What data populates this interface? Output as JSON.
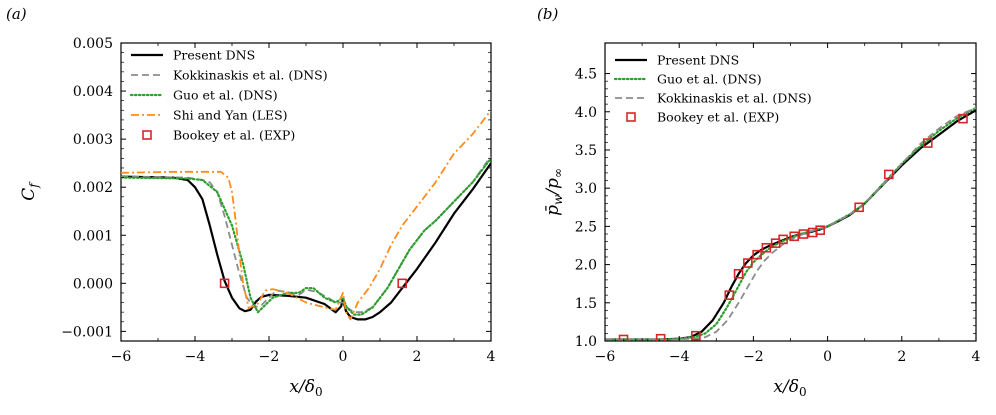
{
  "colors": {
    "dns": "#000000",
    "kokkinaskis": "#8c8c8c",
    "guo": "#2ca02c",
    "shi": "#ff8c1a",
    "bookey": "#d62728"
  },
  "chart_data": [
    {
      "type": "line",
      "panel_label": "(a)",
      "xlabel": "x/δ₀",
      "ylabel": "C_f",
      "xlim": [
        -6,
        4
      ],
      "ylim": [
        -0.0012,
        0.005
      ],
      "xticks": [
        -6,
        -4,
        -2,
        0,
        2,
        4
      ],
      "xtick_labels": [
        "−6",
        "−4",
        "−2",
        "0",
        "2",
        "4"
      ],
      "yticks": [
        -0.001,
        0.0,
        0.001,
        0.002,
        0.003,
        0.004,
        0.005
      ],
      "ytick_labels": [
        "−0.001",
        "0.000",
        "0.001",
        "0.002",
        "0.003",
        "0.004",
        "0.005"
      ],
      "legend_position": "top-left",
      "series": [
        {
          "name": "Present DNS",
          "style": "solid",
          "color_key": "dns",
          "x": [
            -6,
            -4.6,
            -4.2,
            -4.0,
            -3.8,
            -3.6,
            -3.4,
            -3.2,
            -3.0,
            -2.8,
            -2.65,
            -2.5,
            -2.35,
            -2.2,
            -2.0,
            -1.5,
            -1.0,
            -0.5,
            -0.2,
            -0.05,
            0.0,
            0.08,
            0.2,
            0.4,
            0.6,
            0.8,
            1.0,
            1.3,
            1.6,
            2.0,
            2.5,
            3.0,
            3.5,
            4.0
          ],
          "y": [
            0.00222,
            0.0022,
            0.00215,
            0.002,
            0.00175,
            0.0012,
            0.0006,
            5e-05,
            -0.0003,
            -0.00052,
            -0.00058,
            -0.00055,
            -0.00038,
            -0.00028,
            -0.00024,
            -0.00026,
            -0.0003,
            -0.00043,
            -0.0006,
            -0.00048,
            -0.00033,
            -0.00058,
            -0.0007,
            -0.00075,
            -0.00075,
            -0.0007,
            -0.0006,
            -0.0004,
            -0.0001,
            0.0003,
            0.00085,
            0.00145,
            0.00195,
            0.0025
          ]
        },
        {
          "name": "Kokkinaskis et al. (DNS)",
          "style": "dashed",
          "color_key": "kokkinaskis",
          "x": [
            -6,
            -4.2,
            -3.8,
            -3.6,
            -3.4,
            -3.2,
            -3.0,
            -2.8,
            -2.6,
            -2.4,
            -2.2,
            -2.0,
            -1.8,
            -1.5,
            -1.2,
            -1.0,
            -0.7,
            -0.4,
            -0.2,
            0.0,
            0.1,
            0.3,
            0.5,
            0.8,
            1.2,
            1.5,
            1.8,
            2.2,
            2.5,
            3.0,
            3.5,
            4.0
          ],
          "y": [
            0.00222,
            0.0022,
            0.00215,
            0.0021,
            0.0019,
            0.0014,
            0.0008,
            0.0002,
            -0.0003,
            -0.0005,
            -0.00045,
            -0.0003,
            -0.00015,
            -0.00018,
            -0.00025,
            -0.00013,
            -0.00018,
            -0.0003,
            -0.0004,
            -0.0004,
            -0.0005,
            -0.0006,
            -0.0006,
            -0.0005,
            -0.0001,
            0.0003,
            0.0007,
            0.0011,
            0.0013,
            0.0017,
            0.0021,
            0.00265
          ]
        },
        {
          "name": "Guo et al. (DNS)",
          "style": "dotted",
          "color_key": "guo",
          "x": [
            -6,
            -4.2,
            -3.8,
            -3.4,
            -3.0,
            -2.7,
            -2.5,
            -2.3,
            -2.1,
            -1.9,
            -1.5,
            -1.2,
            -1.0,
            -0.8,
            -0.5,
            -0.2,
            0.0,
            0.1,
            0.3,
            0.5,
            0.8,
            1.2,
            1.5,
            1.8,
            2.2,
            2.5,
            3.0,
            3.5,
            4.0
          ],
          "y": [
            0.0022,
            0.00218,
            0.00215,
            0.0019,
            0.0012,
            0.0004,
            -0.0003,
            -0.0006,
            -0.00045,
            -0.0003,
            -0.0002,
            -0.0002,
            -0.0001,
            -0.0001,
            -0.0003,
            -0.0004,
            -0.0003,
            -0.0005,
            -0.00065,
            -0.00065,
            -0.0005,
            -0.0001,
            0.0003,
            0.0007,
            0.0011,
            0.0013,
            0.0017,
            0.0021,
            0.0026
          ]
        },
        {
          "name": "Shi and Yan (LES)",
          "style": "dashdot",
          "color_key": "shi",
          "x": [
            -6,
            -4.5,
            -3.3,
            -3.1,
            -3.0,
            -2.9,
            -2.8,
            -2.7,
            -2.55,
            -2.3,
            -2.1,
            -1.9,
            -1.5,
            -1.0,
            -0.5,
            -0.2,
            0.0,
            0.08,
            0.2,
            0.4,
            0.7,
            1.0,
            1.3,
            1.6,
            2.0,
            2.5,
            3.0,
            3.5,
            4.0
          ],
          "y": [
            0.0023,
            0.00232,
            0.00232,
            0.0022,
            0.0019,
            0.0013,
            0.0006,
            0.0,
            -0.00052,
            -0.00042,
            -0.00015,
            -0.00012,
            -0.0002,
            -0.0004,
            -0.0005,
            -0.00055,
            -0.0002,
            -0.0006,
            -0.00075,
            -0.0004,
            -0.0001,
            0.0003,
            0.0008,
            0.0012,
            0.0016,
            0.0021,
            0.0027,
            0.0031,
            0.0036
          ]
        },
        {
          "name": "Bookey et al. (EXP)",
          "style": "marker",
          "color_key": "bookey",
          "x": [
            -3.2,
            1.6
          ],
          "y": [
            0.0,
            0.0
          ]
        }
      ]
    },
    {
      "type": "line",
      "panel_label": "(b)",
      "xlabel": "x/δ₀",
      "ylabel": "p̄_w/p_∞",
      "xlim": [
        -6,
        4
      ],
      "ylim": [
        1.0,
        4.9
      ],
      "xticks": [
        -6,
        -4,
        -2,
        0,
        2,
        4
      ],
      "xtick_labels": [
        "−6",
        "−4",
        "−2",
        "0",
        "2",
        "4"
      ],
      "yticks": [
        1.0,
        1.5,
        2.0,
        2.5,
        3.0,
        3.5,
        4.0,
        4.5
      ],
      "ytick_labels": [
        "1.0",
        "1.5",
        "2.0",
        "2.5",
        "3.0",
        "3.5",
        "4.0",
        "4.5"
      ],
      "legend_position": "top-left",
      "series": [
        {
          "name": "Present DNS",
          "style": "solid",
          "color_key": "dns",
          "x": [
            -6,
            -4.5,
            -4.0,
            -3.7,
            -3.4,
            -3.1,
            -2.8,
            -2.6,
            -2.4,
            -2.2,
            -2.0,
            -1.8,
            -1.6,
            -1.4,
            -1.2,
            -1.0,
            -0.8,
            -0.5,
            -0.2,
            0.0,
            0.3,
            0.6,
            1.0,
            1.5,
            2.0,
            2.5,
            3.0,
            3.5,
            4.0
          ],
          "y": [
            1.02,
            1.02,
            1.03,
            1.05,
            1.12,
            1.27,
            1.5,
            1.7,
            1.88,
            2.02,
            2.12,
            2.19,
            2.24,
            2.28,
            2.32,
            2.36,
            2.39,
            2.42,
            2.46,
            2.5,
            2.57,
            2.65,
            2.8,
            3.05,
            3.3,
            3.52,
            3.7,
            3.88,
            4.02
          ]
        },
        {
          "name": "Guo et al. (DNS)",
          "style": "dotted",
          "color_key": "guo",
          "x": [
            -6,
            -4.5,
            -4.0,
            -3.6,
            -3.3,
            -3.0,
            -2.7,
            -2.4,
            -2.2,
            -2.0,
            -1.8,
            -1.6,
            -1.4,
            -1.2,
            -1.0,
            -0.8,
            -0.5,
            -0.2,
            0.0,
            0.3,
            0.6,
            1.0,
            1.5,
            2.0,
            2.5,
            3.0,
            3.5,
            4.0
          ],
          "y": [
            1.02,
            1.02,
            1.03,
            1.05,
            1.1,
            1.22,
            1.45,
            1.72,
            1.9,
            2.03,
            2.12,
            2.2,
            2.26,
            2.31,
            2.35,
            2.39,
            2.43,
            2.47,
            2.5,
            2.58,
            2.66,
            2.8,
            3.06,
            3.32,
            3.55,
            3.75,
            3.92,
            4.05
          ]
        },
        {
          "name": "Kokkinaskis et al. (DNS)",
          "style": "dashed",
          "color_key": "kokkinaskis",
          "x": [
            -6,
            -4.2,
            -3.6,
            -3.3,
            -3.0,
            -2.7,
            -2.4,
            -2.1,
            -1.9,
            -1.7,
            -1.5,
            -1.3,
            -1.1,
            -0.9,
            -0.6,
            -0.3,
            0.0,
            0.4,
            0.8,
            1.2,
            1.6,
            2.0,
            2.5,
            3.0,
            3.5,
            4.0
          ],
          "y": [
            1.02,
            1.02,
            1.03,
            1.05,
            1.12,
            1.27,
            1.5,
            1.75,
            1.92,
            2.05,
            2.15,
            2.23,
            2.3,
            2.35,
            2.41,
            2.46,
            2.5,
            2.6,
            2.72,
            2.9,
            3.1,
            3.32,
            3.58,
            3.78,
            3.95,
            4.05
          ]
        },
        {
          "name": "Bookey et al. (EXP)",
          "style": "marker",
          "color_key": "bookey",
          "x": [
            -5.5,
            -4.5,
            -3.55,
            -2.65,
            -2.4,
            -2.15,
            -1.9,
            -1.65,
            -1.4,
            -1.2,
            -0.9,
            -0.65,
            -0.4,
            -0.2,
            0.85,
            1.65,
            2.7,
            3.65
          ],
          "y": [
            1.02,
            1.03,
            1.07,
            1.6,
            1.88,
            2.02,
            2.13,
            2.22,
            2.28,
            2.33,
            2.37,
            2.4,
            2.42,
            2.45,
            2.75,
            3.18,
            3.59,
            3.91
          ]
        }
      ]
    }
  ]
}
